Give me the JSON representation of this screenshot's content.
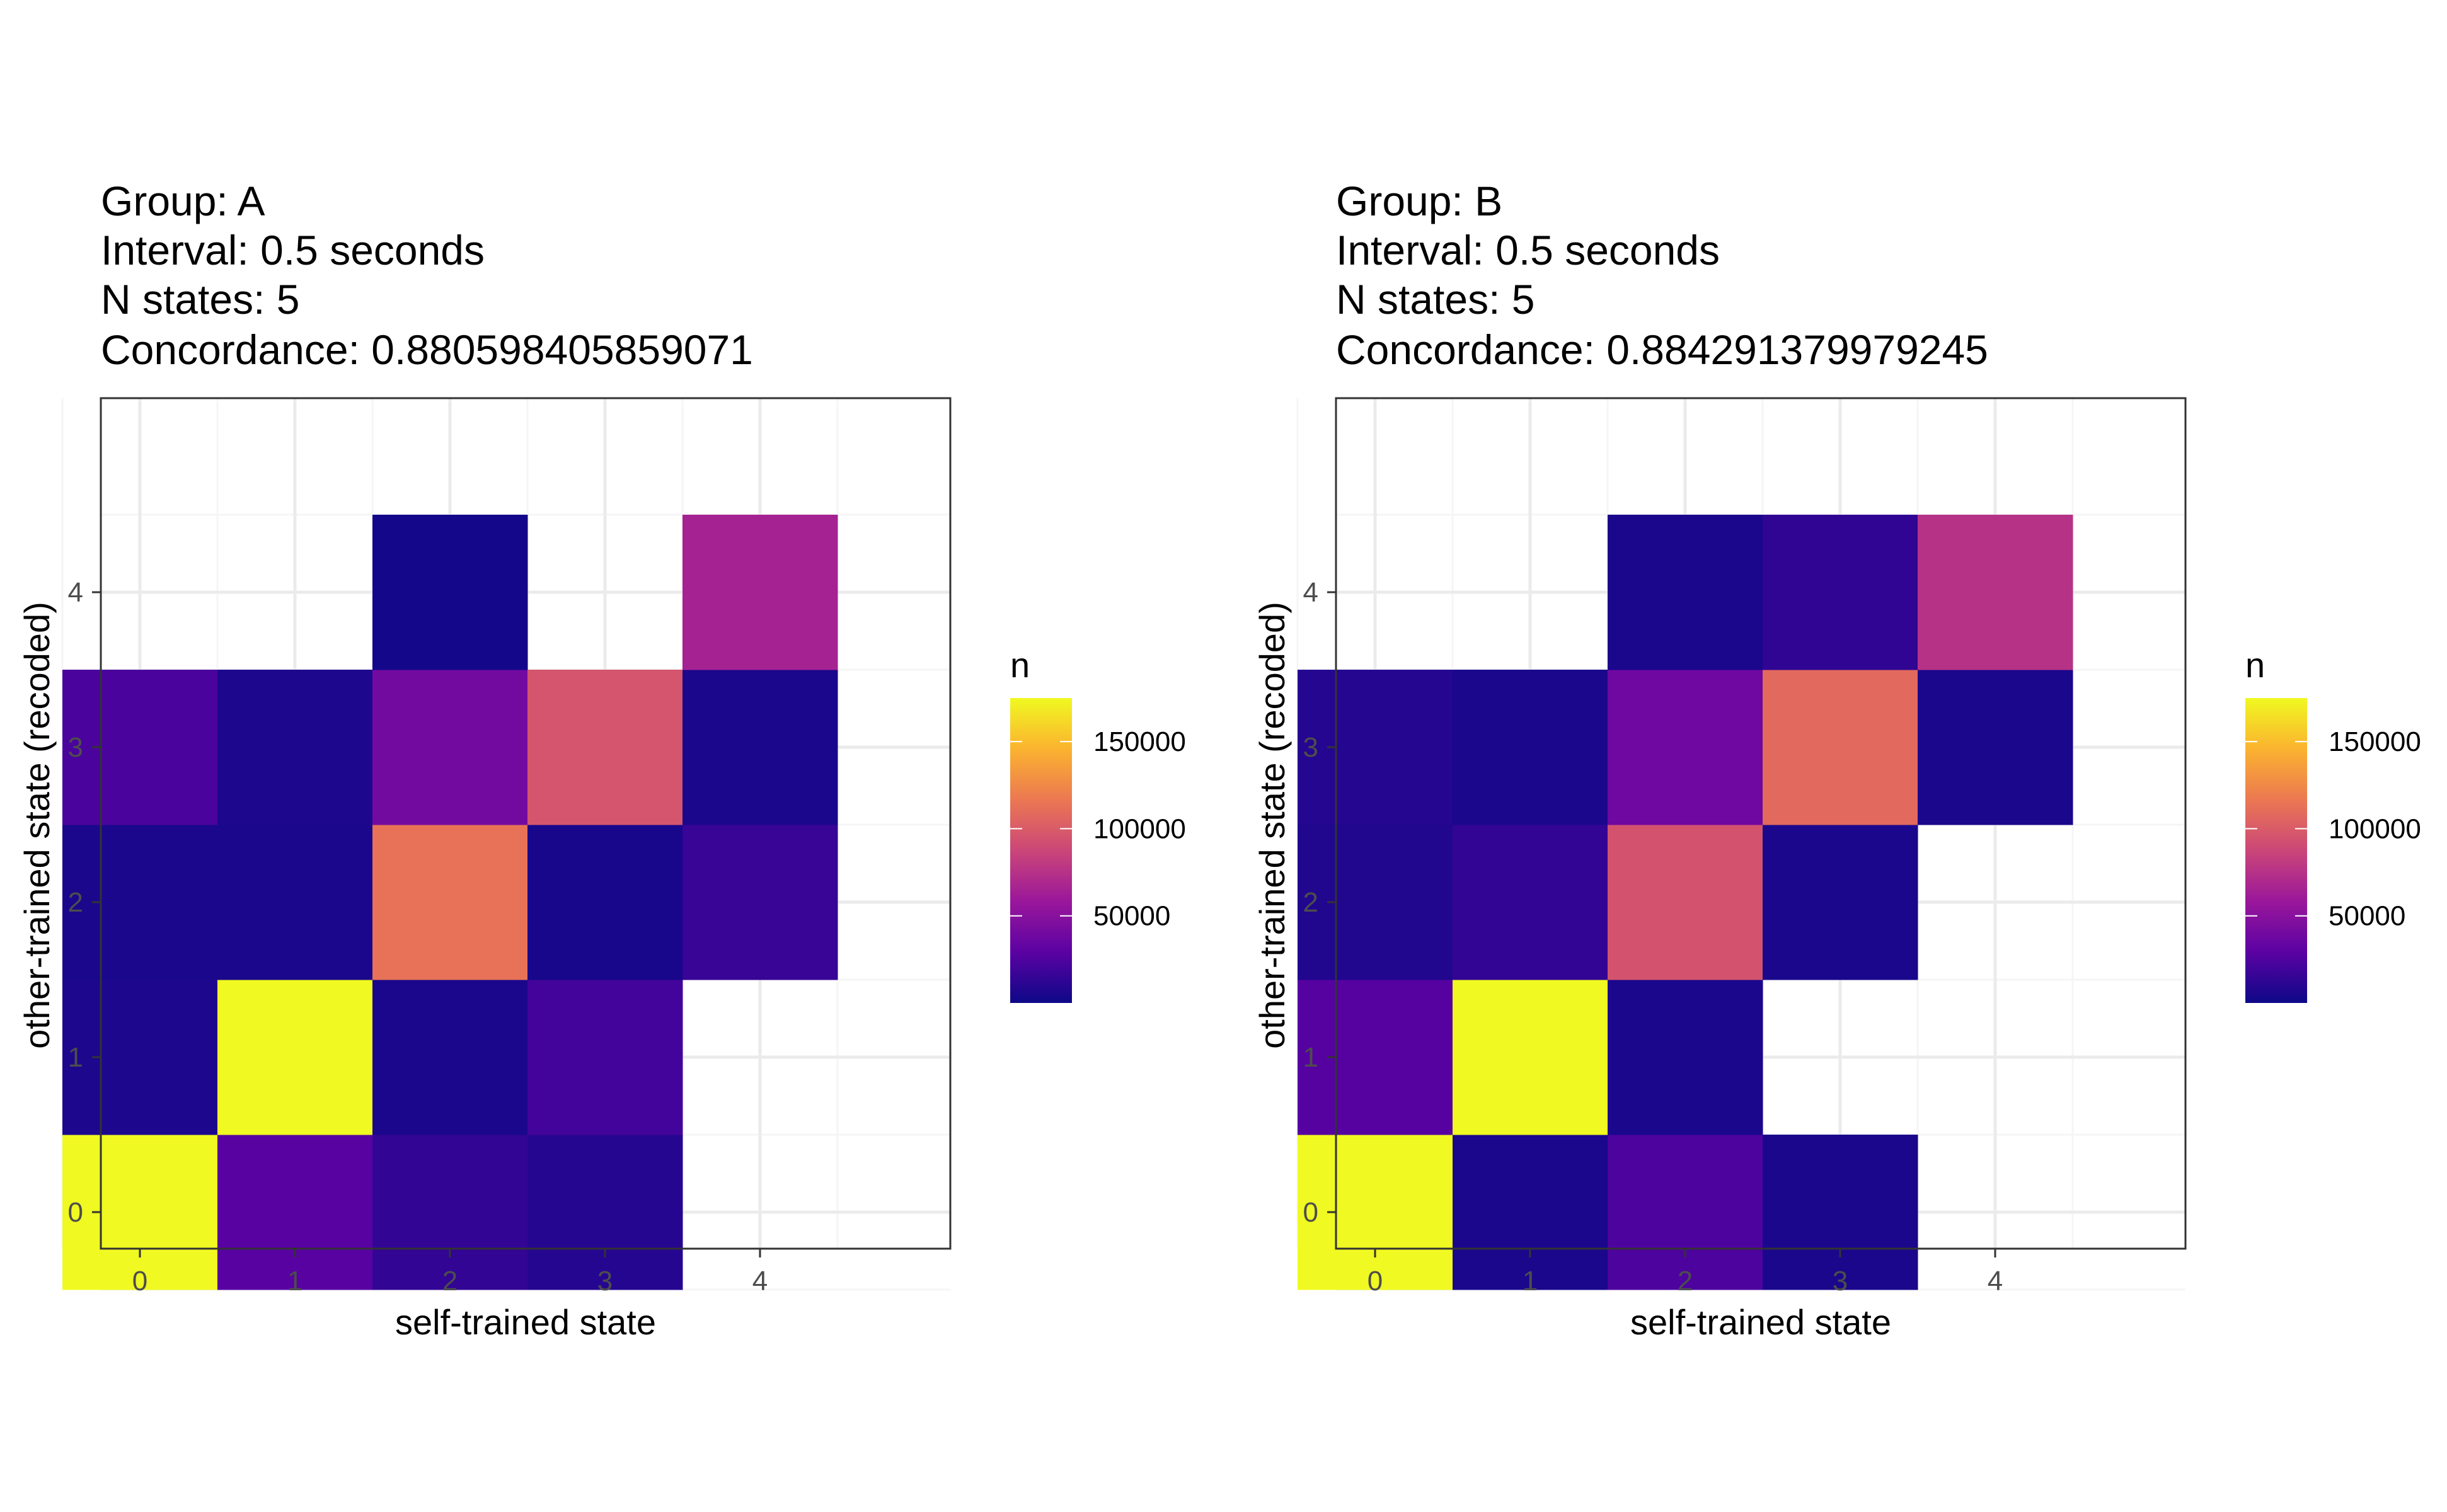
{
  "chart_data": [
    {
      "type": "heatmap",
      "title_lines": [
        "Group: A",
        "Interval: 0.5 seconds",
        "N states: 5",
        "Concordance: 0.880598405859071"
      ],
      "xlabel": "self-trained state",
      "ylabel": "other-trained state (recoded)",
      "x_categories": [
        "0",
        "1",
        "2",
        "3",
        "4"
      ],
      "y_categories": [
        "0",
        "1",
        "2",
        "3",
        "4"
      ],
      "legend": {
        "title": "n",
        "ticks": [
          "50000",
          "100000",
          "150000"
        ],
        "tick_values": [
          50000,
          100000,
          150000
        ],
        "range": [
          0,
          175000
        ],
        "placement": "right"
      },
      "grid": true,
      "cells": [
        {
          "x": 0,
          "y": 0,
          "n": 175000
        },
        {
          "x": 1,
          "y": 0,
          "n": 28000
        },
        {
          "x": 2,
          "y": 0,
          "n": 14000
        },
        {
          "x": 3,
          "y": 0,
          "n": 9000
        },
        {
          "x": 0,
          "y": 1,
          "n": 6000
        },
        {
          "x": 1,
          "y": 1,
          "n": 175000
        },
        {
          "x": 2,
          "y": 1,
          "n": 5000
        },
        {
          "x": 3,
          "y": 1,
          "n": 20000
        },
        {
          "x": 0,
          "y": 2,
          "n": 5000
        },
        {
          "x": 1,
          "y": 2,
          "n": 5000
        },
        {
          "x": 2,
          "y": 2,
          "n": 113000
        },
        {
          "x": 3,
          "y": 2,
          "n": 4000
        },
        {
          "x": 4,
          "y": 2,
          "n": 16000
        },
        {
          "x": 0,
          "y": 3,
          "n": 23000
        },
        {
          "x": 1,
          "y": 3,
          "n": 6000
        },
        {
          "x": 2,
          "y": 3,
          "n": 40000
        },
        {
          "x": 3,
          "y": 3,
          "n": 96000
        },
        {
          "x": 4,
          "y": 3,
          "n": 5000
        },
        {
          "x": 2,
          "y": 4,
          "n": 3000
        },
        {
          "x": 4,
          "y": 4,
          "n": 65000
        }
      ]
    },
    {
      "type": "heatmap",
      "title_lines": [
        "Group: B",
        "Interval: 0.5 seconds",
        "N states: 5",
        "Concordance: 0.884291379979245"
      ],
      "xlabel": "self-trained state",
      "ylabel": "other-trained state (recoded)",
      "x_categories": [
        "0",
        "1",
        "2",
        "3",
        "4"
      ],
      "y_categories": [
        "0",
        "1",
        "2",
        "3",
        "4"
      ],
      "legend": {
        "title": "n",
        "ticks": [
          "50000",
          "100000",
          "150000"
        ],
        "tick_values": [
          50000,
          100000,
          150000
        ],
        "range": [
          0,
          175000
        ],
        "placement": "right"
      },
      "grid": true,
      "cells": [
        {
          "x": 0,
          "y": 0,
          "n": 175000
        },
        {
          "x": 1,
          "y": 0,
          "n": 5000
        },
        {
          "x": 2,
          "y": 0,
          "n": 24000
        },
        {
          "x": 3,
          "y": 0,
          "n": 5000
        },
        {
          "x": 0,
          "y": 1,
          "n": 27000
        },
        {
          "x": 1,
          "y": 1,
          "n": 175000
        },
        {
          "x": 2,
          "y": 1,
          "n": 5000
        },
        {
          "x": 0,
          "y": 2,
          "n": 7000
        },
        {
          "x": 1,
          "y": 2,
          "n": 14000
        },
        {
          "x": 2,
          "y": 2,
          "n": 95000
        },
        {
          "x": 3,
          "y": 2,
          "n": 5000
        },
        {
          "x": 0,
          "y": 3,
          "n": 9000
        },
        {
          "x": 1,
          "y": 3,
          "n": 5000
        },
        {
          "x": 2,
          "y": 3,
          "n": 38000
        },
        {
          "x": 3,
          "y": 3,
          "n": 108000
        },
        {
          "x": 4,
          "y": 3,
          "n": 5000
        },
        {
          "x": 2,
          "y": 4,
          "n": 5000
        },
        {
          "x": 3,
          "y": 4,
          "n": 13000
        },
        {
          "x": 4,
          "y": 4,
          "n": 75000
        }
      ]
    }
  ],
  "colors": {
    "plasma_stops": [
      "#0d0887",
      "#5b02a3",
      "#9a179b",
      "#cb4678",
      "#eb7852",
      "#fbb32f",
      "#f0f921"
    ],
    "panel_border": "#333333",
    "grid_major": "#ebebeb",
    "grid_minor": "#f5f5f5"
  }
}
